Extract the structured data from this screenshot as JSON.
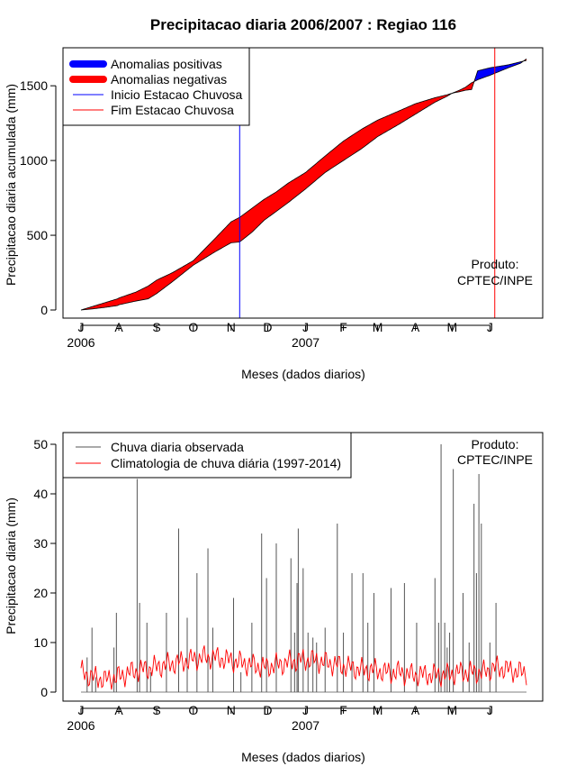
{
  "figure_title": "Precipitacao diaria 2006/2007 : Regiao 116",
  "chart_data": [
    {
      "type": "area",
      "title": "Precipitacao diaria 2006/2007 : Regiao 116",
      "xlabel": "Meses (dados diarios)",
      "ylabel": "Precipitacao diaria acumulada (mm)",
      "xlim_days": [
        0,
        365
      ],
      "ylim": [
        0,
        1700
      ],
      "yticks": [
        0,
        500,
        1000,
        1500
      ],
      "month_ticks": [
        {
          "label": "J",
          "day": 0
        },
        {
          "label": "A",
          "day": 31
        },
        {
          "label": "S",
          "day": 62
        },
        {
          "label": "O",
          "day": 92
        },
        {
          "label": "N",
          "day": 123
        },
        {
          "label": "D",
          "day": 153
        },
        {
          "label": "J",
          "day": 184
        },
        {
          "label": "F",
          "day": 215
        },
        {
          "label": "M",
          "day": 243
        },
        {
          "label": "A",
          "day": 274
        },
        {
          "label": "M",
          "day": 304
        },
        {
          "label": "J",
          "day": 335
        }
      ],
      "year_labels": [
        {
          "label": "2006",
          "day": 0
        },
        {
          "label": "2007",
          "day": 184
        }
      ],
      "legend": {
        "position": "top-left",
        "items": [
          {
            "label": "Anomalias positivas",
            "color": "#0000ff",
            "style": "thick"
          },
          {
            "label": "Anomalias negativas",
            "color": "#ff0000",
            "style": "thick"
          },
          {
            "label": "Inicio Estacao Chuvosa",
            "color": "#0000ff",
            "style": "thin"
          },
          {
            "label": "Fim Estacao Chuvosa",
            "color": "#ff0000",
            "style": "thin"
          }
        ]
      },
      "onset_day": 130,
      "end_day": 339,
      "product_label": [
        "Produto:",
        "CPTEC/INPE"
      ],
      "observed_cumulative": {
        "day": [
          0,
          10,
          20,
          30,
          31,
          45,
          55,
          62,
          75,
          92,
          110,
          123,
          130,
          140,
          150,
          160,
          170,
          184,
          200,
          215,
          230,
          243,
          260,
          274,
          290,
          300,
          304,
          310,
          315,
          320,
          325,
          335,
          350,
          360,
          365
        ],
        "mm": [
          0,
          8,
          18,
          30,
          35,
          60,
          75,
          110,
          190,
          300,
          390,
          450,
          455,
          520,
          600,
          660,
          720,
          810,
          920,
          1000,
          1080,
          1160,
          1240,
          1310,
          1390,
          1430,
          1450,
          1460,
          1470,
          1475,
          1600,
          1620,
          1640,
          1660,
          1670
        ]
      },
      "climatology_cumulative": {
        "day": [
          0,
          10,
          20,
          30,
          31,
          45,
          55,
          62,
          75,
          92,
          110,
          123,
          130,
          140,
          150,
          160,
          170,
          184,
          200,
          215,
          230,
          243,
          260,
          274,
          290,
          300,
          304,
          310,
          315,
          320,
          325,
          335,
          350,
          360,
          365
        ],
        "mm": [
          0,
          25,
          50,
          75,
          80,
          120,
          160,
          200,
          250,
          330,
          480,
          590,
          620,
          680,
          740,
          790,
          850,
          920,
          1030,
          1130,
          1210,
          1270,
          1330,
          1380,
          1420,
          1440,
          1450,
          1470,
          1490,
          1520,
          1540,
          1570,
          1620,
          1650,
          1680
        ]
      }
    },
    {
      "type": "bar",
      "xlabel": "Meses (dados diarios)",
      "ylabel": "Precipitacao diaria (mm)",
      "xlim_days": [
        0,
        365
      ],
      "ylim": [
        0,
        52
      ],
      "yticks": [
        0,
        10,
        20,
        30,
        40,
        50
      ],
      "legend": {
        "position": "top-left",
        "items": [
          {
            "label": "Chuva diaria observada",
            "color": "#555555"
          },
          {
            "label": "Climatologia de chuva diária (1997-2014)",
            "color": "#ff0000"
          }
        ]
      },
      "product_label": [
        "Produto:",
        "CPTEC/INPE"
      ],
      "observed_daily": {
        "day": [
          5,
          9,
          12,
          27,
          29,
          46,
          48,
          54,
          57,
          70,
          80,
          87,
          95,
          104,
          108,
          125,
          131,
          140,
          148,
          152,
          160,
          172,
          175,
          177,
          178,
          182,
          186,
          190,
          193,
          200,
          210,
          215,
          222,
          231,
          235,
          240,
          254,
          265,
          275,
          290,
          293,
          295,
          298,
          300,
          302,
          305,
          313,
          318,
          322,
          324,
          326,
          328,
          335,
          340
        ],
        "mm": [
          7,
          13,
          3,
          9,
          16,
          43,
          18,
          14,
          4,
          16,
          33,
          15,
          24,
          29,
          13,
          19,
          4,
          14,
          32,
          23,
          30,
          27,
          12,
          22,
          33,
          25,
          12,
          11,
          10,
          13,
          34,
          12,
          24,
          24,
          14,
          20,
          21,
          22,
          14,
          23,
          14,
          50,
          14,
          9,
          12,
          45,
          20,
          10,
          38,
          24,
          44,
          34,
          10,
          18
        ]
      },
      "climatology_daily": {
        "day": [
          0,
          10,
          20,
          30,
          40,
          50,
          60,
          70,
          80,
          90,
          100,
          110,
          120,
          130,
          140,
          150,
          160,
          170,
          180,
          190,
          200,
          210,
          220,
          230,
          240,
          250,
          260,
          270,
          280,
          290,
          300,
          310,
          320,
          330,
          340,
          350,
          360,
          365
        ],
        "mm": [
          4,
          3,
          2.5,
          3,
          4,
          4.5,
          5,
          5.5,
          6,
          6.5,
          7,
          7,
          6.5,
          6,
          5.5,
          5,
          5.5,
          6,
          6.5,
          6.5,
          6,
          5.5,
          5,
          4.5,
          4.5,
          4,
          4,
          3.5,
          3.5,
          3.5,
          3.5,
          4,
          4,
          4,
          5,
          4.5,
          4,
          4
        ]
      }
    }
  ]
}
